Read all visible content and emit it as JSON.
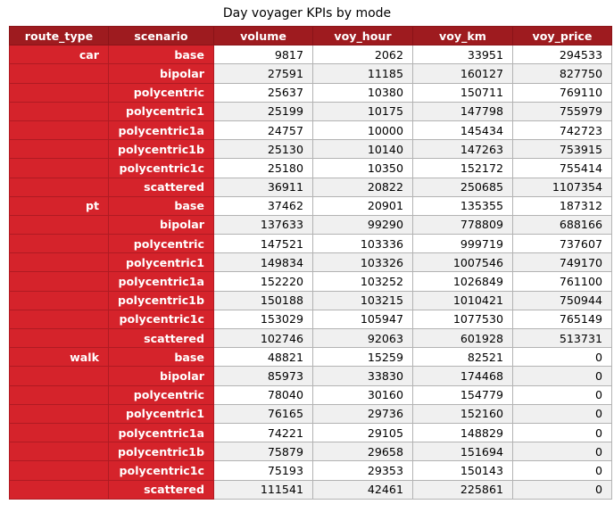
{
  "chart_data": {
    "type": "table",
    "title": "Day voyager KPIs by mode",
    "columns": [
      "route_type",
      "scenario",
      "volume",
      "voy_hour",
      "voy_km",
      "voy_price"
    ],
    "rows": [
      [
        "car",
        "base",
        "9817",
        "2062",
        "33951",
        "294533"
      ],
      [
        "",
        "bipolar",
        "27591",
        "11185",
        "160127",
        "827750"
      ],
      [
        "",
        "polycentric",
        "25637",
        "10380",
        "150711",
        "769110"
      ],
      [
        "",
        "polycentric1",
        "25199",
        "10175",
        "147798",
        "755979"
      ],
      [
        "",
        "polycentric1a",
        "24757",
        "10000",
        "145434",
        "742723"
      ],
      [
        "",
        "polycentric1b",
        "25130",
        "10140",
        "147263",
        "753915"
      ],
      [
        "",
        "polycentric1c",
        "25180",
        "10350",
        "152172",
        "755414"
      ],
      [
        "",
        "scattered",
        "36911",
        "20822",
        "250685",
        "1107354"
      ],
      [
        "pt",
        "base",
        "37462",
        "20901",
        "135355",
        "187312"
      ],
      [
        "",
        "bipolar",
        "137633",
        "99290",
        "778809",
        "688166"
      ],
      [
        "",
        "polycentric",
        "147521",
        "103336",
        "999719",
        "737607"
      ],
      [
        "",
        "polycentric1",
        "149834",
        "103326",
        "1007546",
        "749170"
      ],
      [
        "",
        "polycentric1a",
        "152220",
        "103252",
        "1026849",
        "761100"
      ],
      [
        "",
        "polycentric1b",
        "150188",
        "103215",
        "1010421",
        "750944"
      ],
      [
        "",
        "polycentric1c",
        "153029",
        "105947",
        "1077530",
        "765149"
      ],
      [
        "",
        "scattered",
        "102746",
        "92063",
        "601928",
        "513731"
      ],
      [
        "walk",
        "base",
        "48821",
        "15259",
        "82521",
        "0"
      ],
      [
        "",
        "bipolar",
        "85973",
        "33830",
        "174468",
        "0"
      ],
      [
        "",
        "polycentric",
        "78040",
        "30160",
        "154779",
        "0"
      ],
      [
        "",
        "polycentric1",
        "76165",
        "29736",
        "152160",
        "0"
      ],
      [
        "",
        "polycentric1a",
        "74221",
        "29105",
        "148829",
        "0"
      ],
      [
        "",
        "polycentric1b",
        "75879",
        "29658",
        "151694",
        "0"
      ],
      [
        "",
        "polycentric1c",
        "75193",
        "29353",
        "150143",
        "0"
      ],
      [
        "",
        "scattered",
        "111541",
        "42461",
        "225861",
        "0"
      ]
    ]
  },
  "colors": {
    "header_bg": "#9e1b1f",
    "index_bg": "#d5232b",
    "row_alt_bg": "#f0f0f0",
    "row_bg": "#ffffff",
    "grid": "#b3b3b3"
  }
}
